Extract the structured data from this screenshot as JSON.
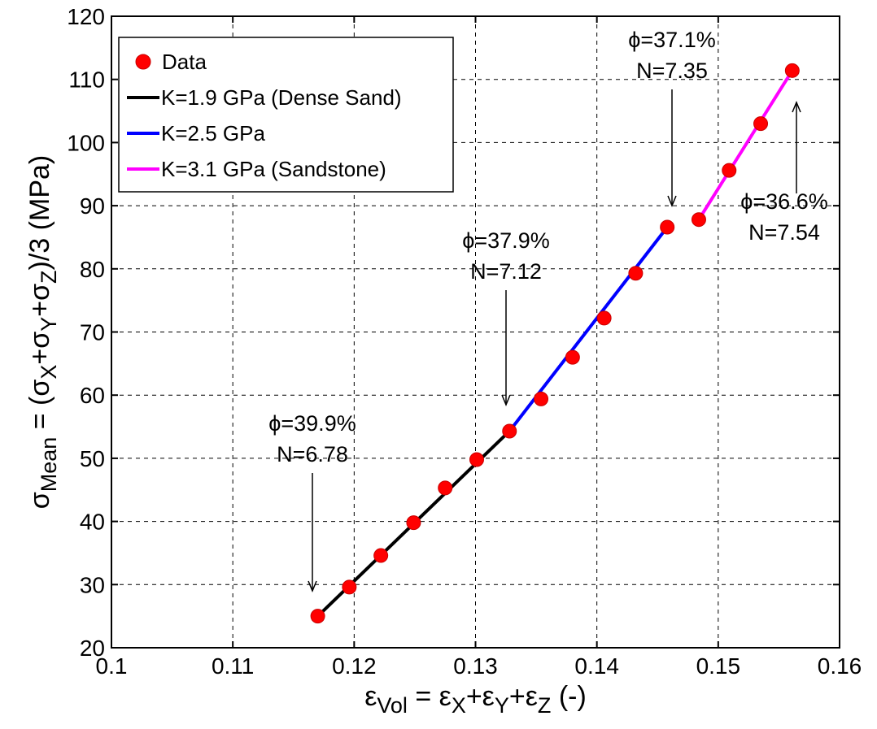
{
  "chart_data": {
    "type": "scatter",
    "xlim": [
      0.1,
      0.16
    ],
    "ylim": [
      20,
      120
    ],
    "xticks": [
      "0.1",
      "0.11",
      "0.12",
      "0.13",
      "0.14",
      "0.15",
      "0.16"
    ],
    "yticks": [
      "20",
      "30",
      "40",
      "50",
      "60",
      "70",
      "80",
      "90",
      "100",
      "110",
      "120"
    ],
    "grid": true,
    "legend_position": "top-left",
    "xlabel": {
      "parts": [
        "ε",
        "Vol",
        " = ε",
        "X",
        "+ε",
        "Y",
        "+ε",
        "Z",
        " (-)"
      ]
    },
    "ylabel": {
      "parts": [
        "σ",
        "Mean",
        " = (σ",
        "X",
        "+σ",
        "Y",
        "+σ",
        "Z",
        ")/3 (MPa)"
      ]
    },
    "series": [
      {
        "name": "Data",
        "kind": "points",
        "color": "#ff0000",
        "x": [
          0.117,
          0.1196,
          0.1222,
          0.1249,
          0.1275,
          0.1301,
          0.1328,
          0.1354,
          0.138,
          0.1406,
          0.1432,
          0.1458,
          0.1484,
          0.1509,
          0.1535,
          0.1561
        ],
        "y": [
          25,
          29.6,
          34.6,
          39.8,
          45.3,
          49.8,
          54.3,
          59.4,
          66,
          72.2,
          79.3,
          86.6,
          87.8,
          95.6,
          103,
          111.4
        ]
      },
      {
        "name": "K=1.9 GPa (Dense Sand)",
        "kind": "line",
        "color": "#000000",
        "x": [
          0.117,
          0.1328
        ],
        "y": [
          25,
          54.3
        ]
      },
      {
        "name": "K=2.5 GPa",
        "kind": "line",
        "color": "#0000ff",
        "x": [
          0.1328,
          0.1458
        ],
        "y": [
          54.3,
          86.6
        ]
      },
      {
        "name": "K=3.1 GPa (Sandstone)",
        "kind": "line",
        "color": "#ff00ff",
        "x": [
          0.1484,
          0.1561
        ],
        "y": [
          87.8,
          111.4
        ]
      }
    ],
    "annotations": [
      {
        "lines": [
          "ϕ=39.9%",
          "N=6.78"
        ],
        "point": [
          0.117,
          25
        ]
      },
      {
        "lines": [
          "ϕ=37.9%",
          "N=7.12"
        ],
        "point": [
          0.1328,
          54.3
        ]
      },
      {
        "lines": [
          "ϕ=37.1%",
          "N=7.35"
        ],
        "point": [
          0.1458,
          86.6
        ]
      },
      {
        "lines": [
          "ϕ=36.6%",
          "N=7.54"
        ],
        "point": [
          0.1561,
          111.4
        ]
      }
    ]
  }
}
